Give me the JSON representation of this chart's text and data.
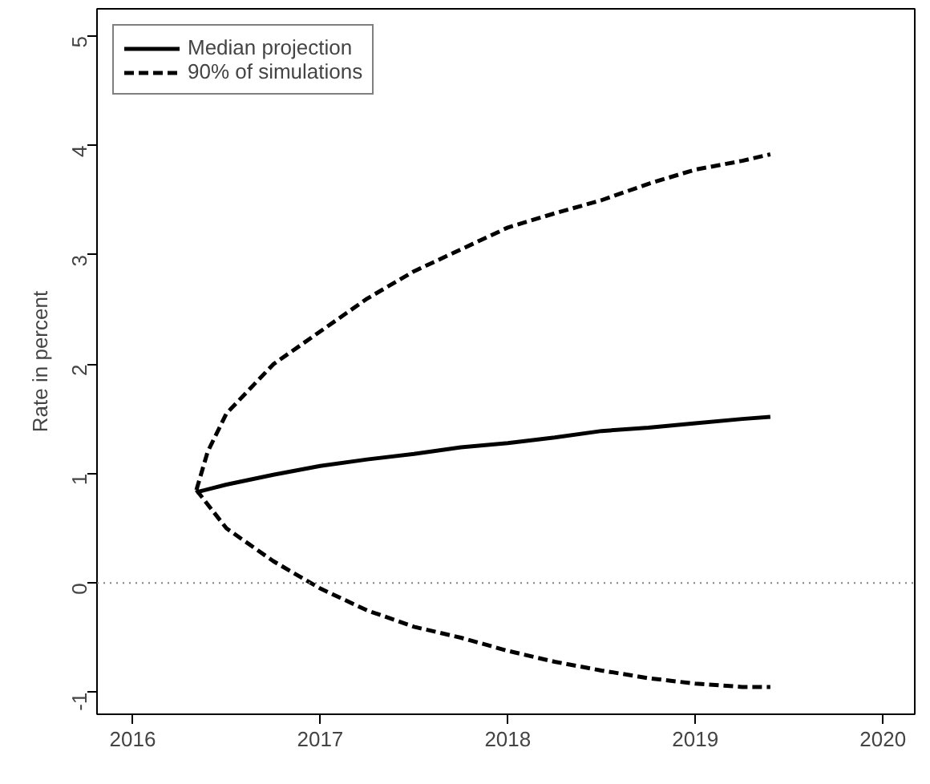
{
  "chart_data": {
    "type": "line",
    "ylabel": "Rate in percent",
    "xlim": [
      2015.81,
      2020.17
    ],
    "ylim": [
      -1.2,
      5.25
    ],
    "xticks": [
      2016,
      2017,
      2018,
      2019,
      2020
    ],
    "yticks": [
      -1,
      0,
      1,
      2,
      3,
      4,
      5
    ],
    "grid": false,
    "legend": "top left",
    "series": [
      {
        "name": "Median projection",
        "color": "#000000",
        "line_style": "solid",
        "x": [
          2016.34,
          2016.5,
          2016.75,
          2017,
          2017.25,
          2017.5,
          2017.75,
          2018,
          2018.25,
          2018.5,
          2018.75,
          2019,
          2019.25,
          2019.4
        ],
        "values": [
          0.83,
          0.9,
          0.99,
          1.07,
          1.13,
          1.18,
          1.24,
          1.28,
          1.33,
          1.39,
          1.42,
          1.46,
          1.5,
          1.52
        ]
      },
      {
        "name": "90% of simulations",
        "color": "#000000",
        "line_style": "dashed",
        "x": [
          2016.34,
          2016.4,
          2016.5,
          2016.75,
          2017,
          2017.25,
          2017.5,
          2017.75,
          2018,
          2018.25,
          2018.5,
          2018.75,
          2019,
          2019.25,
          2019.4
        ],
        "values": [
          0.85,
          1.2,
          1.55,
          2.0,
          2.3,
          2.6,
          2.85,
          3.05,
          3.25,
          3.38,
          3.5,
          3.65,
          3.78,
          3.86,
          3.92
        ]
      },
      {
        "color": "#000000",
        "line_style": "dashed",
        "x": [
          2016.34,
          2016.5,
          2016.75,
          2017,
          2017.25,
          2017.5,
          2017.75,
          2018,
          2018.25,
          2018.5,
          2018.75,
          2019,
          2019.25,
          2019.4
        ],
        "values": [
          0.85,
          0.5,
          0.2,
          -0.05,
          -0.25,
          -0.4,
          -0.5,
          -0.62,
          -0.72,
          -0.8,
          -0.87,
          -0.92,
          -0.95,
          -0.95
        ]
      }
    ],
    "ref_lines": [
      {
        "axis": "y",
        "value": 0,
        "color": "#808080",
        "line_style": "dotted"
      }
    ]
  }
}
